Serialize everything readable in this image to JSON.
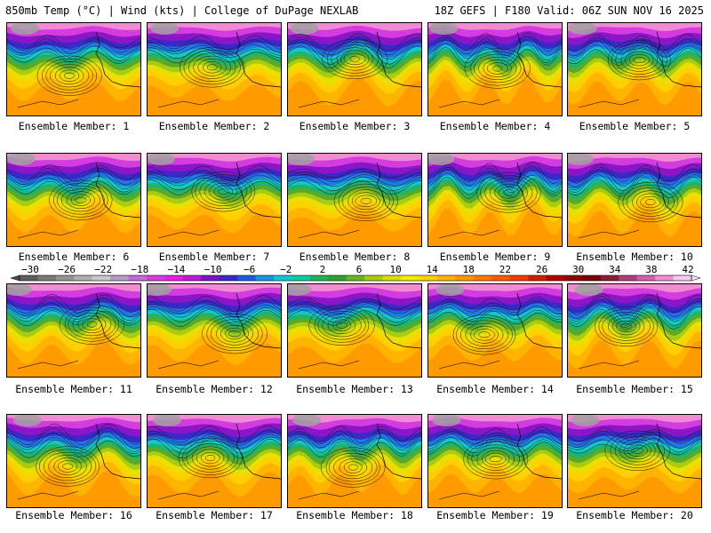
{
  "header": {
    "left": "850mb Temp (°C) | Wind (kts) | College of DuPage NEXLAB",
    "right": "18Z GEFS | F180 Valid: 06Z SUN NOV 16 2025"
  },
  "caption_prefix": "Ensemble Member: ",
  "members": [
    {
      "label": "Ensemble Member: 1"
    },
    {
      "label": "Ensemble Member: 2"
    },
    {
      "label": "Ensemble Member: 3"
    },
    {
      "label": "Ensemble Member: 4"
    },
    {
      "label": "Ensemble Member: 5"
    },
    {
      "label": "Ensemble Member: 6"
    },
    {
      "label": "Ensemble Member: 7"
    },
    {
      "label": "Ensemble Member: 8"
    },
    {
      "label": "Ensemble Member: 9"
    },
    {
      "label": "Ensemble Member: 10"
    },
    {
      "label": "Ensemble Member: 11"
    },
    {
      "label": "Ensemble Member: 12"
    },
    {
      "label": "Ensemble Member: 13"
    },
    {
      "label": "Ensemble Member: 14"
    },
    {
      "label": "Ensemble Member: 15"
    },
    {
      "label": "Ensemble Member: 16"
    },
    {
      "label": "Ensemble Member: 17"
    },
    {
      "label": "Ensemble Member: 18"
    },
    {
      "label": "Ensemble Member: 19"
    },
    {
      "label": "Ensemble Member: 20"
    }
  ],
  "colorbar": {
    "tick_labels": [
      "-30",
      "-26",
      "-22",
      "-18",
      "-14",
      "-10",
      "-6",
      "-2",
      "2",
      "6",
      "10",
      "14",
      "18",
      "22",
      "26",
      "30",
      "34",
      "38",
      "42"
    ],
    "colors": [
      "#5e5e5e",
      "#7a7a7a",
      "#959595",
      "#b0b0b0",
      "#c9c9c9",
      "#b79ac9",
      "#c46ad6",
      "#d43ce0",
      "#e61ee6",
      "#b81ad8",
      "#7a16c8",
      "#3b28c8",
      "#1e5ae6",
      "#1496e6",
      "#14c8d2",
      "#14c8a0",
      "#1eb45a",
      "#32a032",
      "#6eb41e",
      "#aac814",
      "#d7dc0a",
      "#f5eb00",
      "#ffd200",
      "#ffb400",
      "#ff9600",
      "#ff7800",
      "#ff5a00",
      "#f03c00",
      "#d21e00",
      "#b40000",
      "#960000",
      "#780000",
      "#8c1e3c",
      "#b43c78",
      "#d75ab4",
      "#f08cd2",
      "#ffc8f0"
    ]
  }
}
